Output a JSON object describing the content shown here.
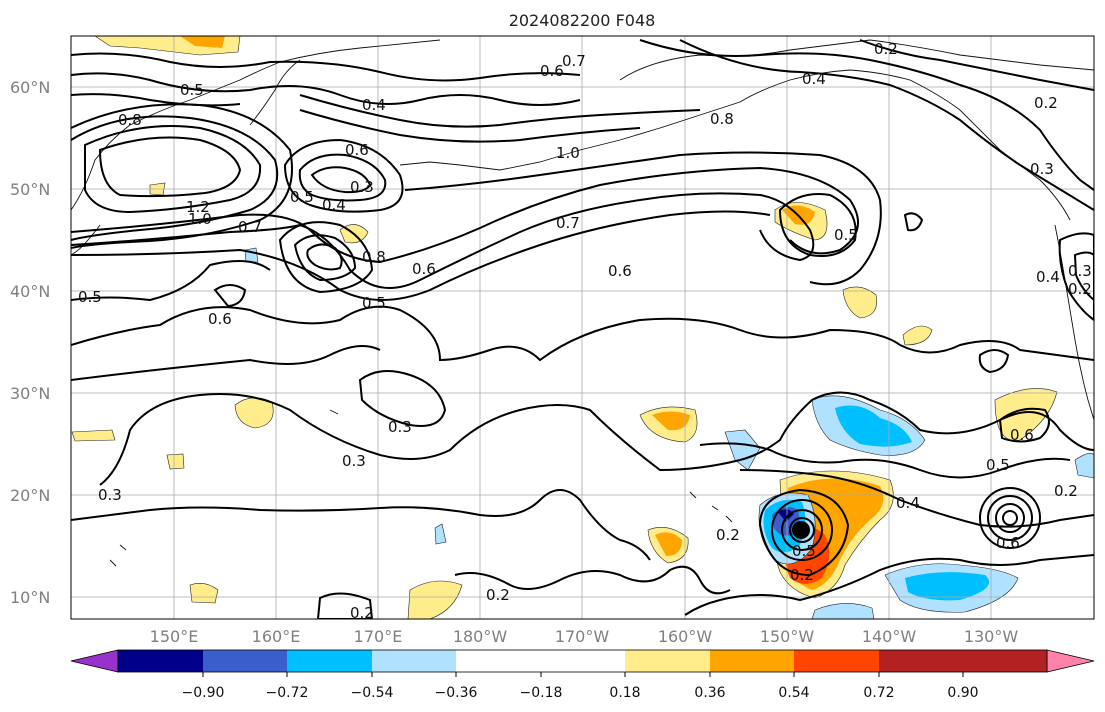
{
  "figure": {
    "title": "2024082200 F048"
  },
  "axes": {
    "lat_labels": [
      "60°N",
      "50°N",
      "40°N",
      "30°N",
      "20°N",
      "10°N"
    ],
    "lon_labels": [
      "150°E",
      "160°E",
      "170°E",
      "180°W",
      "170°W",
      "160°W",
      "150°W",
      "140°W",
      "130°W"
    ]
  },
  "colorbar": {
    "ticks": [
      "−0.90",
      "−0.72",
      "−0.54",
      "−0.36",
      "−0.18",
      "0.18",
      "0.36",
      "0.54",
      "0.72",
      "0.90"
    ],
    "colors": [
      "#9932cc",
      "#00008b",
      "#3a5fcd",
      "#00bfff",
      "#b0e2ff",
      "#ffffff",
      "#ffec8b",
      "#ffa500",
      "#ff4500",
      "#b22222",
      "#ff82ab"
    ]
  },
  "contour_labels": [
    {
      "id": "top-left-05",
      "text": "0.5"
    },
    {
      "id": "top-left-08",
      "text": "0.8"
    },
    {
      "id": "top-04",
      "text": "0.4"
    },
    {
      "id": "top-06-a",
      "text": "0.6"
    },
    {
      "id": "top-07",
      "text": "0.7"
    },
    {
      "id": "top-right-02",
      "text": "0.2"
    },
    {
      "id": "top-04-b",
      "text": "0.4"
    },
    {
      "id": "right-02",
      "text": "0.2"
    },
    {
      "id": "mid-08",
      "text": "0.8"
    },
    {
      "id": "mid-10",
      "text": "1.0"
    },
    {
      "id": "left-12",
      "text": "1.2"
    },
    {
      "id": "left-10",
      "text": "1.0"
    },
    {
      "id": "left-07",
      "text": "0.7"
    },
    {
      "id": "c-06",
      "text": "0.6"
    },
    {
      "id": "c-05",
      "text": "0.5"
    },
    {
      "id": "c-04",
      "text": "0.4"
    },
    {
      "id": "c-03",
      "text": "0.3"
    },
    {
      "id": "c-08",
      "text": "0.8"
    },
    {
      "id": "c-06-b",
      "text": "0.6"
    },
    {
      "id": "c-05-b",
      "text": "0.5"
    },
    {
      "id": "mid-07",
      "text": "0.7"
    },
    {
      "id": "mid-06",
      "text": "0.6"
    },
    {
      "id": "mid-05",
      "text": "0.5"
    },
    {
      "id": "right-03",
      "text": "0.3"
    },
    {
      "id": "right-04",
      "text": "0.4"
    },
    {
      "id": "right-03b",
      "text": "0.3"
    },
    {
      "id": "right-02b",
      "text": "0.2"
    },
    {
      "id": "left-05",
      "text": "0.5"
    },
    {
      "id": "left-06",
      "text": "0.6"
    },
    {
      "id": "s-03-a",
      "text": "0.3"
    },
    {
      "id": "s-03-b",
      "text": "0.3"
    },
    {
      "id": "s-03-c",
      "text": "0.3"
    },
    {
      "id": "s-02-a",
      "text": "0.2"
    },
    {
      "id": "s-02-b",
      "text": "0.2"
    },
    {
      "id": "s-02-c",
      "text": "0.2"
    },
    {
      "id": "s-02-d",
      "text": "0.2"
    },
    {
      "id": "s-04",
      "text": "0.4"
    },
    {
      "id": "s-05",
      "text": "0.5"
    },
    {
      "id": "s-06",
      "text": "0.6"
    },
    {
      "id": "s-06-b",
      "text": "0.6"
    },
    {
      "id": "s-02-e",
      "text": "0.2"
    },
    {
      "id": "storm-05",
      "text": "0.5"
    }
  ]
}
